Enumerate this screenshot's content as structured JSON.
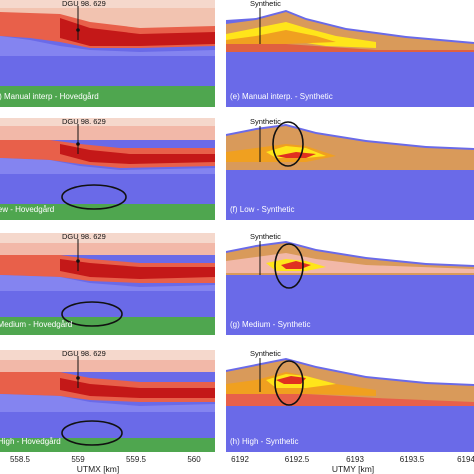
{
  "left_panels": [
    {
      "label": "(a) Manual interp - Hovedgård",
      "well": "DGU 98. 629"
    },
    {
      "label": "(b) New - Hovedgård",
      "well": "DGU 98. 629"
    },
    {
      "label": "(c) Medium - Hovedgård",
      "well": "DGU 98. 629"
    },
    {
      "label": "(d) High - Hovedgård",
      "well": "DGU 98. 629"
    }
  ],
  "right_panels": [
    {
      "label": "(e) Manual interp. - Synthetic",
      "well": "Synthetic"
    },
    {
      "label": "(f) Low - Synthetic",
      "well": "Synthetic"
    },
    {
      "label": "(g) Medium - Synthetic",
      "well": "Synthetic"
    },
    {
      "label": "(h) High - Synthetic",
      "well": "Synthetic"
    }
  ],
  "left_axis": {
    "title": "UTMX [km]",
    "ticks": [
      "558.5",
      "559",
      "559.5",
      "560"
    ]
  },
  "right_axis": {
    "title": "UTMY [km]",
    "ticks": [
      "6192",
      "6192.5",
      "6193",
      "6193.5",
      "6194"
    ]
  },
  "colors": {
    "background": "#6a6ae8",
    "green": "#4fa64f",
    "orange": "#d99a5a",
    "red": "#d42a1e",
    "yellow": "#ffe51a"
  }
}
